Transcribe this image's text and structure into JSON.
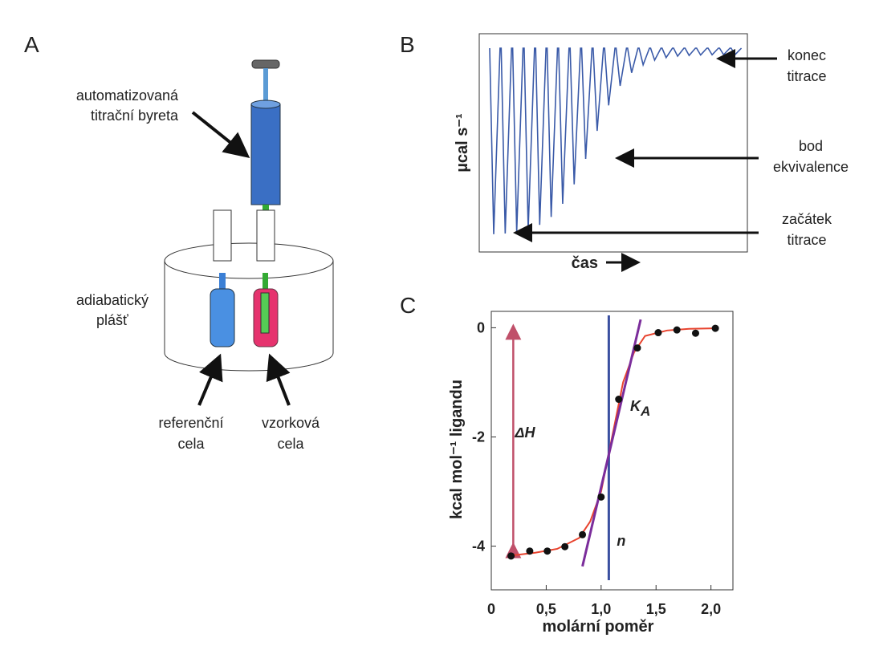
{
  "panel_a": {
    "label": "A",
    "burette_label": [
      "automatizovaná",
      "titrační byreta"
    ],
    "jacket_label": [
      "adiabatický",
      "plášť"
    ],
    "reference_cell_label": [
      "referenční",
      "cela"
    ],
    "sample_cell_label": [
      "vzorková",
      "cela"
    ]
  },
  "panel_b": {
    "label": "B",
    "y_label": "µcal s⁻¹",
    "x_label": "čas",
    "end_label": [
      "konec",
      "titrace"
    ],
    "equivalence_label": [
      "bod",
      "ekvivalence"
    ],
    "start_label": [
      "začátek",
      "titrace"
    ]
  },
  "chart_data": {
    "type": "scatter",
    "panel_label": "C",
    "x_label": "molární poměr",
    "y_label": "kcal mol⁻¹ ligandu",
    "x": [
      0.18,
      0.35,
      0.51,
      0.67,
      0.83,
      1.0,
      1.16,
      1.33,
      1.52,
      1.69,
      1.86,
      2.04
    ],
    "values": [
      -4.18,
      -4.09,
      -4.09,
      -4.01,
      -3.79,
      -3.1,
      -1.31,
      -0.37,
      -0.09,
      -0.04,
      -0.1,
      -0.01
    ],
    "color": "#111111",
    "fit_x": [
      0.15,
      0.4,
      0.6,
      0.8,
      0.9,
      1.0,
      1.1,
      1.2,
      1.3,
      1.4,
      1.6,
      1.8,
      2.05
    ],
    "fit_values": [
      -4.18,
      -4.12,
      -4.05,
      -3.85,
      -3.55,
      -3.0,
      -2.0,
      -1.0,
      -0.45,
      -0.15,
      -0.05,
      -0.02,
      -0.01
    ],
    "fit_color": "#e8432e",
    "n_line": {
      "x": 1.07,
      "label": "n",
      "color": "#3a4fa0"
    },
    "ka_line": {
      "x": [
        0.83,
        1.36
      ],
      "values": [
        -4.37,
        0.15
      ],
      "label": "K",
      "label_sub": "A",
      "color": "#7b2d9b"
    },
    "dh_arrow": {
      "x": 0.2,
      "values": [
        0,
        -4.0
      ],
      "label": "ΔH",
      "color": "#c0506a"
    },
    "xlim": [
      0,
      2.2
    ],
    "ylim": [
      -4.8,
      0.3
    ],
    "xticks": [
      0,
      {
        "value": 0.5,
        "label": "0,5"
      },
      {
        "value": 1.0,
        "label": "1,0"
      },
      {
        "value": 1.5,
        "label": "1,5"
      },
      {
        "value": 2.0,
        "label": "2,0"
      }
    ],
    "yticks": [
      -4,
      -2,
      0
    ]
  }
}
